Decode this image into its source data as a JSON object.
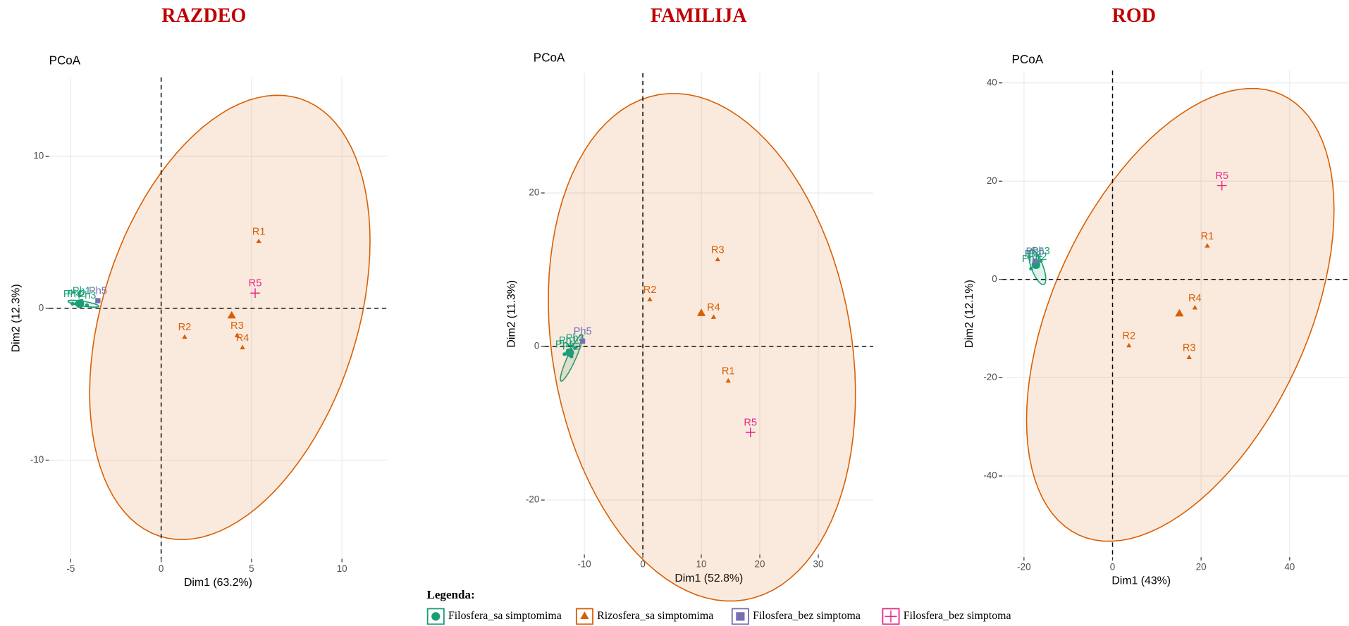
{
  "chart_data": [
    {
      "type": "scatter",
      "title": "RAZDEO",
      "subtitle": "PCoA",
      "xlabel": "Dim1 (63.2%)",
      "ylabel": "Dim2 (12.3%)",
      "xlim": [
        -6.2,
        12.5
      ],
      "ylim": [
        -16.5,
        15.2
      ],
      "xticks": [
        -5,
        0,
        5,
        10
      ],
      "yticks": [
        -10,
        0,
        10
      ],
      "series": [
        {
          "labels": [
            "Ph1",
            "Ph2",
            "Ph3",
            "Ph4"
          ],
          "x": [
            -4.4,
            -4.7,
            -4.1,
            -4.9
          ],
          "y": [
            0.5,
            0.3,
            0.2,
            0.3
          ],
          "centroid": [
            -4.5,
            0.3
          ],
          "ellipse": {
            "center": [
              -4.3,
              0.3
            ],
            "axis1": [
              0.85,
              -0.17
            ],
            "axis2": [
              0.05,
              0.15
            ]
          }
        },
        {
          "labels": [
            "R1",
            "R2",
            "R3",
            "R4"
          ],
          "x": [
            5.4,
            1.3,
            4.2,
            4.5
          ],
          "y": [
            4.4,
            -1.9,
            -1.8,
            -2.6
          ],
          "centroid": [
            3.9,
            -0.5
          ],
          "ellipse": {
            "center": [
              3.8,
              -0.6
            ],
            "axis1": [
              3.9,
              14.4
            ],
            "axis2": [
              6.7,
              -2.6
            ]
          }
        },
        {
          "labels": [
            "Ph5"
          ],
          "x": [
            -3.5
          ],
          "y": [
            0.5
          ]
        },
        {
          "labels": [
            "R5"
          ],
          "x": [
            5.2
          ],
          "y": [
            1.0
          ]
        }
      ]
    },
    {
      "type": "scatter",
      "title": "FAMILIJA",
      "subtitle": "PCoA",
      "xlabel": "Dim1 (52.8%)",
      "ylabel": "Dim2 (11.3%)",
      "xlim": [
        -16.8,
        39.4
      ],
      "ylim": [
        -27.1,
        35.6
      ],
      "xticks": [
        -10,
        0,
        10,
        20,
        30
      ],
      "yticks": [
        -20,
        0,
        20
      ],
      "series": [
        {
          "labels": [
            "Ph1",
            "Ph2",
            "Ph3",
            "Ph4"
          ],
          "x": [
            -12.8,
            -12.2,
            -11.6,
            -13.4
          ],
          "y": [
            -0.5,
            -1.3,
            -0.2,
            -1.0
          ],
          "centroid": [
            -12.5,
            -0.8
          ],
          "ellipse": {
            "center": [
              -12.2,
              -1.5
            ],
            "axis1": [
              1.8,
              3.0
            ],
            "axis2": [
              0.6,
              -0.3
            ]
          }
        },
        {
          "labels": [
            "R1",
            "R2",
            "R3",
            "R4"
          ],
          "x": [
            14.6,
            1.2,
            12.8,
            12.1
          ],
          "y": [
            -4.5,
            6.1,
            11.3,
            3.8
          ],
          "centroid": [
            10.0,
            4.3
          ],
          "ellipse": {
            "center": [
              10.1,
              -0.1
            ],
            "axis1": [
              -7.4,
              32.9
            ],
            "axis2": [
              25.2,
              3.3
            ]
          }
        },
        {
          "labels": [
            "Ph5"
          ],
          "x": [
            -10.3
          ],
          "y": [
            0.7
          ]
        },
        {
          "labels": [
            "R5"
          ],
          "x": [
            18.4
          ],
          "y": [
            -11.2
          ]
        }
      ]
    },
    {
      "type": "scatter",
      "title": "ROD",
      "subtitle": "PCoA",
      "xlabel": "Dim1 (43%)",
      "ylabel": "Dim2 (12.1%)",
      "xlim": [
        -24.9,
        53.4
      ],
      "ylim": [
        -56.5,
        42.5
      ],
      "xticks": [
        -20,
        0,
        20,
        40
      ],
      "yticks": [
        -40,
        -20,
        0,
        20,
        40
      ],
      "series": [
        {
          "labels": [
            "Ph1",
            "Ph2",
            "Ph3",
            "Ph4"
          ],
          "x": [
            -17.8,
            -16.9,
            -16.2,
            -18.4
          ],
          "y": [
            3.2,
            2.6,
            3.8,
            2.2
          ],
          "centroid": [
            -17.3,
            3.0
          ],
          "ellipse": {
            "center": [
              -17.0,
              2.5
            ],
            "axis1": [
              1.5,
              -3.5
            ],
            "axis2": [
              1.2,
              0.5
            ]
          }
        },
        {
          "labels": [
            "R1",
            "R2",
            "R3",
            "R4"
          ],
          "x": [
            21.4,
            3.7,
            17.3,
            18.6
          ],
          "y": [
            6.8,
            -13.5,
            -15.9,
            -5.8
          ],
          "centroid": [
            15.1,
            -7.0
          ],
          "ellipse": {
            "center": [
              15.3,
              -7.2
            ],
            "axis1": [
              22.9,
              44.8
            ],
            "axis2": [
              26.1,
              -10.8
            ]
          }
        },
        {
          "labels": [
            "Ph5"
          ],
          "x": [
            -17.5
          ],
          "y": [
            3.7
          ]
        },
        {
          "labels": [
            "R5"
          ],
          "x": [
            24.7
          ],
          "y": [
            19.1
          ]
        }
      ]
    }
  ],
  "legend": {
    "title": "Legenda:",
    "items": [
      {
        "name": "Filosfera_sa simptomima",
        "color": "#1b9e77",
        "marker": "circle"
      },
      {
        "name": "Rizosfera_sa simptomima",
        "color": "#d95f02",
        "marker": "triangle"
      },
      {
        "name": "Filosfera_bez simptoma",
        "color": "#7570b3",
        "marker": "square"
      },
      {
        "name": "Filosfera_bez simptoma",
        "color": "#e7298a",
        "marker": "cross"
      }
    ]
  }
}
